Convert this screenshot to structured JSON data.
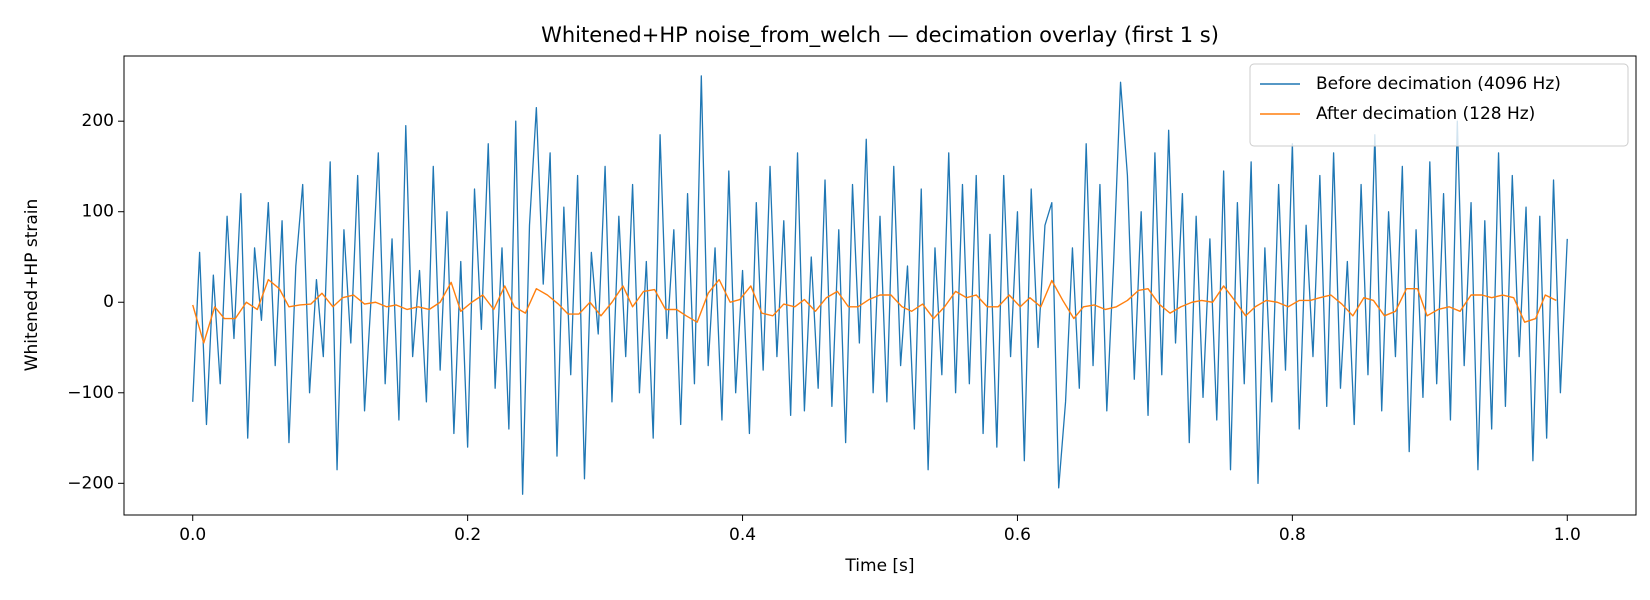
{
  "chart_data": {
    "type": "line",
    "title": "Whitened+HP noise_from_welch — decimation overlay (first 1 s)",
    "xlabel": "Time [s]",
    "ylabel": "Whitened+HP strain",
    "xlim": [
      -0.05,
      1.05
    ],
    "ylim": [
      -235,
      272
    ],
    "xticks": [
      {
        "value": 0,
        "label": "0.0"
      },
      0.2,
      0.4,
      0.6,
      0.8,
      {
        "value": 1,
        "label": "1.0"
      }
    ],
    "yticks": [
      {
        "value": -200,
        "label": "−200"
      },
      {
        "value": -100,
        "label": "−100"
      },
      0,
      100,
      200
    ],
    "legend": "upper right",
    "series": [
      {
        "name": "Before decimation (4096 Hz)",
        "color": "#1f77b4",
        "x": [
          0,
          0.005,
          0.01,
          0.015,
          0.02,
          0.025,
          0.03,
          0.035,
          0.04,
          0.045,
          0.05,
          0.055,
          0.06,
          0.065,
          0.07,
          0.075,
          0.08,
          0.085,
          0.09,
          0.095,
          0.1,
          0.105,
          0.11,
          0.115,
          0.12,
          0.125,
          0.13,
          0.135,
          0.14,
          0.145,
          0.15,
          0.155,
          0.16,
          0.165,
          0.17,
          0.175,
          0.18,
          0.185,
          0.19,
          0.195,
          0.2,
          0.205,
          0.21,
          0.215,
          0.22,
          0.225,
          0.23,
          0.235,
          0.24,
          0.245,
          0.25,
          0.255,
          0.26,
          0.265,
          0.27,
          0.275,
          0.28,
          0.285,
          0.29,
          0.295,
          0.3,
          0.305,
          0.31,
          0.315,
          0.32,
          0.325,
          0.33,
          0.335,
          0.34,
          0.345,
          0.35,
          0.355,
          0.36,
          0.365,
          0.37,
          0.375,
          0.38,
          0.385,
          0.39,
          0.395,
          0.4,
          0.405,
          0.41,
          0.415,
          0.42,
          0.425,
          0.43,
          0.435,
          0.44,
          0.445,
          0.45,
          0.455,
          0.46,
          0.465,
          0.47,
          0.475,
          0.48,
          0.485,
          0.49,
          0.495,
          0.5,
          0.505,
          0.51,
          0.515,
          0.52,
          0.525,
          0.53,
          0.535,
          0.54,
          0.545,
          0.55,
          0.555,
          0.56,
          0.565,
          0.57,
          0.575,
          0.58,
          0.585,
          0.59,
          0.595,
          0.6,
          0.605,
          0.61,
          0.615,
          0.62,
          0.625,
          0.63,
          0.635,
          0.64,
          0.645,
          0.65,
          0.655,
          0.66,
          0.665,
          0.67,
          0.675,
          0.68,
          0.685,
          0.69,
          0.695,
          0.7,
          0.705,
          0.71,
          0.715,
          0.72,
          0.725,
          0.73,
          0.735,
          0.74,
          0.745,
          0.75,
          0.755,
          0.76,
          0.765,
          0.77,
          0.775,
          0.78,
          0.785,
          0.79,
          0.795,
          0.8,
          0.805,
          0.81,
          0.815,
          0.82,
          0.825,
          0.83,
          0.835,
          0.84,
          0.845,
          0.85,
          0.855,
          0.86,
          0.865,
          0.87,
          0.875,
          0.88,
          0.885,
          0.89,
          0.895,
          0.9,
          0.905,
          0.91,
          0.915,
          0.92,
          0.925,
          0.93,
          0.935,
          0.94,
          0.945,
          0.95,
          0.955,
          0.96,
          0.965,
          0.97,
          0.975,
          0.98,
          0.985,
          0.99,
          0.995,
          1
        ],
        "values": [
          -110,
          55,
          -135,
          30,
          -90,
          95,
          -40,
          120,
          -150,
          60,
          -20,
          110,
          -70,
          90,
          -155,
          40,
          130,
          -100,
          25,
          -60,
          155,
          -185,
          80,
          -45,
          140,
          -120,
          10,
          165,
          -90,
          70,
          -130,
          195,
          -60,
          35,
          -110,
          150,
          -75,
          100,
          -145,
          45,
          -160,
          125,
          -30,
          175,
          -95,
          60,
          -140,
          200,
          -212,
          85,
          215,
          20,
          165,
          -170,
          105,
          -80,
          140,
          -195,
          55,
          -35,
          150,
          -110,
          95,
          -60,
          130,
          -100,
          45,
          -150,
          185,
          -40,
          80,
          -135,
          120,
          -90,
          250,
          -70,
          60,
          -130,
          145,
          -100,
          35,
          -145,
          110,
          -75,
          150,
          -60,
          90,
          -125,
          165,
          -120,
          50,
          -95,
          135,
          -115,
          80,
          -155,
          130,
          -45,
          180,
          -100,
          95,
          -110,
          150,
          -70,
          40,
          -140,
          125,
          -185,
          60,
          -80,
          165,
          -100,
          130,
          -90,
          140,
          -145,
          75,
          -160,
          140,
          -60,
          100,
          -175,
          125,
          -50,
          85,
          110,
          -205,
          -110,
          60,
          -95,
          175,
          -70,
          130,
          -120,
          45,
          243,
          140,
          -85,
          100,
          -125,
          165,
          -80,
          190,
          -45,
          120,
          -155,
          95,
          -105,
          70,
          -130,
          145,
          -185,
          110,
          -90,
          155,
          -200,
          60,
          -110,
          130,
          -75,
          175,
          -140,
          85,
          -60,
          140,
          -115,
          165,
          -95,
          45,
          -135,
          130,
          -80,
          185,
          -120,
          100,
          -60,
          150,
          -165,
          80,
          -105,
          155,
          -90,
          120,
          -130,
          200,
          -70,
          110,
          -185,
          90,
          -140,
          165,
          -115,
          140,
          -60,
          105,
          -175,
          95,
          -150,
          135,
          -100,
          70
        ]
      },
      {
        "name": "After decimation (128 Hz)",
        "color": "#ff7f0e",
        "x": [
          0,
          0.008,
          0.016,
          0.023,
          0.031,
          0.039,
          0.047,
          0.055,
          0.063,
          0.07,
          0.078,
          0.086,
          0.094,
          0.102,
          0.109,
          0.117,
          0.125,
          0.133,
          0.141,
          0.148,
          0.156,
          0.164,
          0.172,
          0.18,
          0.188,
          0.195,
          0.203,
          0.211,
          0.219,
          0.227,
          0.234,
          0.242,
          0.25,
          0.258,
          0.266,
          0.273,
          0.281,
          0.289,
          0.297,
          0.305,
          0.313,
          0.32,
          0.328,
          0.336,
          0.344,
          0.352,
          0.359,
          0.367,
          0.375,
          0.383,
          0.391,
          0.398,
          0.406,
          0.414,
          0.422,
          0.43,
          0.438,
          0.445,
          0.453,
          0.461,
          0.469,
          0.477,
          0.484,
          0.492,
          0.5,
          0.508,
          0.516,
          0.523,
          0.531,
          0.539,
          0.547,
          0.555,
          0.563,
          0.57,
          0.578,
          0.586,
          0.594,
          0.602,
          0.609,
          0.617,
          0.625,
          0.633,
          0.641,
          0.648,
          0.656,
          0.664,
          0.672,
          0.68,
          0.688,
          0.695,
          0.703,
          0.711,
          0.719,
          0.727,
          0.734,
          0.742,
          0.75,
          0.758,
          0.766,
          0.773,
          0.781,
          0.789,
          0.797,
          0.805,
          0.813,
          0.82,
          0.828,
          0.836,
          0.844,
          0.852,
          0.859,
          0.867,
          0.875,
          0.883,
          0.891,
          0.898,
          0.906,
          0.914,
          0.922,
          0.93,
          0.938,
          0.945,
          0.953,
          0.961,
          0.969,
          0.977,
          0.984,
          0.992
        ],
        "values": [
          -3,
          -45,
          -5,
          -18,
          -18,
          0,
          -8,
          25,
          15,
          -5,
          -3,
          -2,
          10,
          -5,
          5,
          8,
          -2,
          0,
          -5,
          -3,
          -8,
          -5,
          -8,
          0,
          22,
          -10,
          0,
          8,
          -8,
          18,
          -5,
          -12,
          15,
          8,
          -2,
          -13,
          -13,
          0,
          -15,
          0,
          18,
          -5,
          12,
          14,
          -8,
          -8,
          -15,
          -22,
          10,
          25,
          0,
          3,
          18,
          -12,
          -15,
          -2,
          -5,
          3,
          -10,
          5,
          12,
          -5,
          -5,
          3,
          8,
          8,
          -5,
          -10,
          -2,
          -18,
          -5,
          12,
          5,
          8,
          -5,
          -5,
          8,
          -5,
          5,
          -5,
          24,
          2,
          -18,
          -5,
          -3,
          -8,
          -5,
          2,
          13,
          15,
          -2,
          -12,
          -5,
          0,
          2,
          0,
          18,
          2,
          -15,
          -5,
          2,
          0,
          -5,
          2,
          2,
          5,
          8,
          -2,
          -15,
          5,
          2,
          -15,
          -10,
          15,
          15,
          -15,
          -8,
          -5,
          -10,
          8,
          8,
          5,
          8,
          5,
          -22,
          -18,
          8,
          2
        ]
      }
    ]
  }
}
